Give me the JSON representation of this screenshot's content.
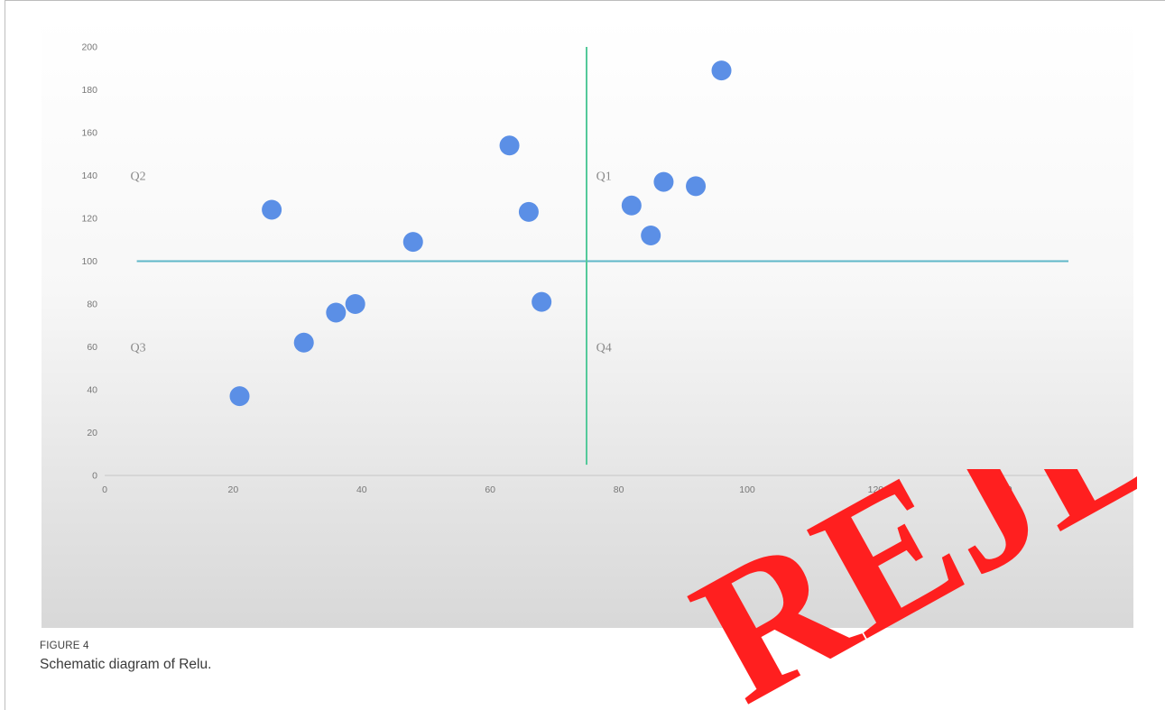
{
  "figure": {
    "label": "FIGURE 4",
    "caption": "Schematic diagram of Relu."
  },
  "stamp": {
    "text": "REJECTED",
    "color": "#ff1f1f"
  },
  "chart_data": {
    "type": "scatter",
    "title": "",
    "xlabel": "",
    "ylabel": "",
    "xlim": [
      0,
      150
    ],
    "ylim": [
      0,
      200
    ],
    "x_ticks": [
      0,
      20,
      40,
      60,
      80,
      100,
      120,
      140
    ],
    "y_ticks": [
      0,
      20,
      40,
      60,
      80,
      100,
      120,
      140,
      160,
      180,
      200
    ],
    "grid": false,
    "points": [
      {
        "x": 21,
        "y": 37
      },
      {
        "x": 26,
        "y": 124
      },
      {
        "x": 31,
        "y": 62
      },
      {
        "x": 36,
        "y": 76
      },
      {
        "x": 39,
        "y": 80
      },
      {
        "x": 48,
        "y": 109
      },
      {
        "x": 63,
        "y": 154
      },
      {
        "x": 66,
        "y": 123
      },
      {
        "x": 68,
        "y": 81
      },
      {
        "x": 82,
        "y": 126
      },
      {
        "x": 85,
        "y": 112
      },
      {
        "x": 87,
        "y": 137
      },
      {
        "x": 92,
        "y": 135
      },
      {
        "x": 96,
        "y": 189
      }
    ],
    "point_color": "#5b8fe6",
    "quadrant_labels": [
      {
        "text": "Q1",
        "x": 76.5,
        "y": 138
      },
      {
        "text": "Q2",
        "x": 4,
        "y": 138
      },
      {
        "text": "Q3",
        "x": 4,
        "y": 58
      },
      {
        "text": "Q4",
        "x": 76.5,
        "y": 58
      }
    ],
    "vertical_line": {
      "x": 75,
      "y_from": 5,
      "y_to": 200,
      "color": "#54c99a"
    },
    "horizontal_line": {
      "y": 100,
      "x_from": 5,
      "x_to": 150,
      "color": "#5fb7c9"
    }
  }
}
